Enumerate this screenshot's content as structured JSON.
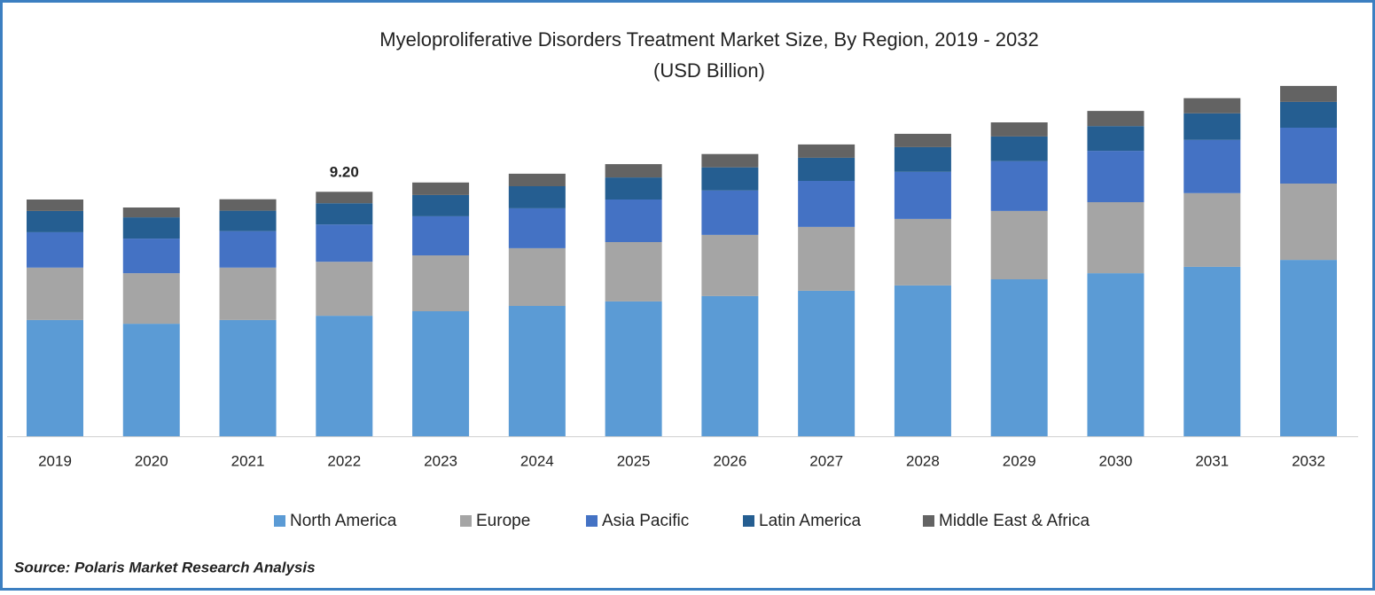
{
  "chart_data": {
    "type": "stacked-bar",
    "title": "Myeloproliferative Disorders Treatment Market Size, By Region, 2019 - 2032",
    "subtitle": "(USD Billion)",
    "source": "Source: Polaris Market Research Analysis",
    "categories": [
      "2019",
      "2020",
      "2021",
      "2022",
      "2023",
      "2024",
      "2025",
      "2026",
      "2027",
      "2028",
      "2029",
      "2030",
      "2031",
      "2032"
    ],
    "series": [
      {
        "name": "North America",
        "color": "#5b9bd5",
        "values": [
          4.37,
          4.23,
          4.37,
          4.53,
          4.7,
          4.9,
          5.07,
          5.27,
          5.47,
          5.67,
          5.9,
          6.13,
          6.37,
          6.63
        ]
      },
      {
        "name": "Europe",
        "color": "#a5a5a5",
        "values": [
          1.97,
          1.9,
          1.97,
          2.03,
          2.1,
          2.17,
          2.23,
          2.3,
          2.4,
          2.5,
          2.57,
          2.67,
          2.77,
          2.87
        ]
      },
      {
        "name": "Asia Pacific",
        "color": "#4472c4",
        "values": [
          1.33,
          1.3,
          1.37,
          1.4,
          1.47,
          1.5,
          1.6,
          1.67,
          1.73,
          1.77,
          1.87,
          1.93,
          2.0,
          2.1
        ]
      },
      {
        "name": "Latin America",
        "color": "#255e91",
        "values": [
          0.8,
          0.8,
          0.77,
          0.8,
          0.8,
          0.83,
          0.83,
          0.87,
          0.87,
          0.93,
          0.93,
          0.93,
          1.0,
          0.97
        ]
      },
      {
        "name": "Middle East & Africa",
        "color": "#636363",
        "values": [
          0.43,
          0.37,
          0.43,
          0.43,
          0.47,
          0.47,
          0.5,
          0.5,
          0.5,
          0.5,
          0.53,
          0.57,
          0.57,
          0.6
        ]
      }
    ],
    "annotations": [
      {
        "x": "2022",
        "value": 9.2,
        "label": "9.20"
      }
    ],
    "ylim": [
      0,
      13
    ]
  }
}
